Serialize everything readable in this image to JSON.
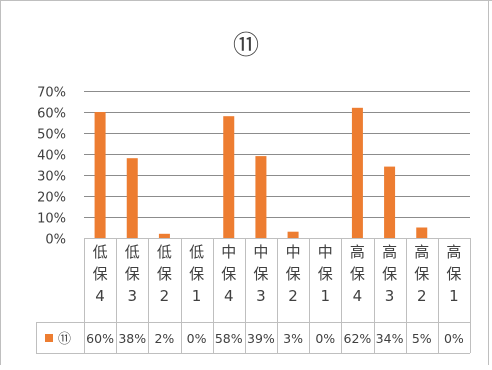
{
  "chart_data": {
    "type": "bar",
    "title": "⑪",
    "categories": [
      [
        "低",
        "保",
        "4"
      ],
      [
        "低",
        "保",
        "3"
      ],
      [
        "低",
        "保",
        "2"
      ],
      [
        "低",
        "保",
        "1"
      ],
      [
        "中",
        "保",
        "4"
      ],
      [
        "中",
        "保",
        "3"
      ],
      [
        "中",
        "保",
        "2"
      ],
      [
        "中",
        "保",
        "1"
      ],
      [
        "高",
        "保",
        "4"
      ],
      [
        "高",
        "保",
        "3"
      ],
      [
        "高",
        "保",
        "2"
      ],
      [
        "高",
        "保",
        "1"
      ]
    ],
    "series": [
      {
        "name": "⑪",
        "values": [
          60,
          38,
          2,
          0,
          58,
          39,
          3,
          0,
          62,
          34,
          5,
          0
        ],
        "labels": [
          "60%",
          "38%",
          "2%",
          "0%",
          "58%",
          "39%",
          "3%",
          "0%",
          "62%",
          "34%",
          "5%",
          "0%"
        ],
        "color": "#ED7D31"
      }
    ],
    "yticks": [
      "0%",
      "10%",
      "20%",
      "30%",
      "40%",
      "50%",
      "60%",
      "70%"
    ],
    "ylim": [
      0,
      70
    ],
    "grid": true,
    "legend": "data-table-left",
    "colors": {
      "bar": "#ED7D31",
      "grid": "#8c8c8c",
      "table_border": "#bfbfbf",
      "text": "#404040",
      "frame": "#bfbfbf"
    }
  }
}
